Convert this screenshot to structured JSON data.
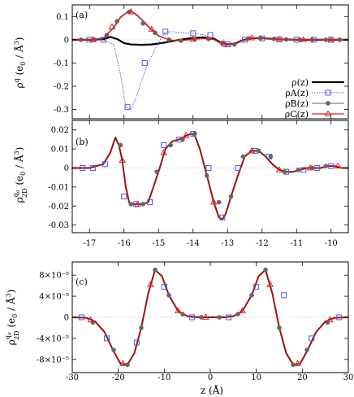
{
  "chart_data": [
    {
      "type": "line",
      "panel_label": "(a)",
      "ylabel": "ρ^q (e0 / Å^3)",
      "xlim": [
        -17.5,
        -9.5
      ],
      "ylim": [
        -0.34,
        0.15
      ],
      "xticks": [
        -17,
        -16,
        -15,
        -14,
        -13,
        -12,
        -11,
        -10
      ],
      "yticks": [
        0.1,
        0,
        -0.1,
        -0.2,
        -0.3
      ],
      "ytick_labels": [
        "0.1",
        "0",
        "-0.1",
        "-0.2",
        "-0.3"
      ],
      "show_xtick_labels": false,
      "zero_line": true,
      "legend": {
        "position": "lower-right",
        "entries": [
          "ρ(z)",
          "ρA(z)",
          "ρB(z)",
          "ρC(z)"
        ]
      },
      "series": [
        {
          "name": "ρ(z)",
          "style": "black-thick",
          "x": [
            -17.5,
            -17.0,
            -16.6,
            -16.4,
            -16.2,
            -16.0,
            -15.8,
            -15.5,
            -15.2,
            -14.9,
            -14.6,
            -14.3,
            -14.0,
            -13.7,
            -13.4,
            -13.2,
            -13.0,
            -12.8,
            -12.6,
            -12.3,
            -12.0,
            -11.5,
            -11.0,
            -10.5,
            -10.0,
            -9.5
          ],
          "y": [
            0,
            0,
            0.002,
            0.012,
            0.003,
            -0.015,
            -0.02,
            -0.022,
            -0.02,
            -0.014,
            -0.006,
            0.002,
            0.008,
            0.01,
            0.005,
            -0.012,
            -0.02,
            -0.018,
            -0.004,
            0.007,
            0.007,
            0.002,
            0,
            0,
            0,
            0
          ]
        },
        {
          "name": "ρA(z)",
          "style": "blue-dotted-square",
          "x": [
            -17.5,
            -17.0,
            -16.6,
            -16.3,
            -16.1,
            -15.95,
            -15.8,
            -15.65,
            -15.5,
            -15.3,
            -15.0,
            -14.8,
            -14.6,
            -14.3,
            -14.0,
            -13.7,
            -13.5,
            -13.3,
            -13.1,
            -12.9,
            -12.7,
            -12.4,
            -12.0,
            -11.5,
            -11.0,
            -10.5,
            -10.0,
            -9.5
          ],
          "y": [
            0,
            0,
            0,
            -0.02,
            -0.15,
            -0.29,
            -0.3,
            -0.25,
            -0.18,
            -0.1,
            -0.01,
            0.033,
            0.035,
            0.03,
            0.028,
            0.022,
            0.01,
            -0.01,
            -0.03,
            -0.03,
            -0.015,
            0.004,
            0.006,
            0.002,
            0,
            0,
            0,
            0
          ],
          "marker_x": [
            -17.0,
            -16.6,
            -15.9,
            -15.4,
            -14.8,
            -14.0,
            -13.5,
            -13.0,
            -12.5,
            -12.0,
            -11.5,
            -11.0,
            -10.5,
            -10.0
          ],
          "marker_y": [
            0,
            0,
            -0.29,
            -0.1,
            0.035,
            0.028,
            0.02,
            -0.02,
            0,
            0.006,
            0.002,
            0,
            0,
            0
          ]
        },
        {
          "name": "ρB(z)",
          "style": "gray-circle",
          "x": [
            -17.5,
            -17.0,
            -16.6,
            -16.3,
            -16.1,
            -15.9,
            -15.75,
            -15.6,
            -15.4,
            -15.2,
            -15.0,
            -14.8,
            -14.6,
            -14.4,
            -14.2,
            -14.0,
            -13.7,
            -13.4,
            -13.2,
            -13.0,
            -12.8,
            -12.6,
            -12.3,
            -12.0,
            -11.5,
            -11.0,
            -10.5,
            -10.0,
            -9.5
          ],
          "y": [
            0,
            0,
            0.008,
            0.055,
            0.1,
            0.12,
            0.118,
            0.1,
            0.07,
            0.04,
            0.015,
            0.005,
            -0.003,
            -0.004,
            -0.002,
            0.002,
            0.005,
            0.001,
            -0.014,
            -0.022,
            -0.02,
            -0.006,
            0.008,
            0.007,
            0.002,
            0,
            0,
            0,
            0
          ],
          "marker_x": [
            -17.25,
            -16.85,
            -16.5,
            -16.2,
            -15.85,
            -15.45,
            -15.1,
            -14.7,
            -14.35,
            -13.95,
            -13.55,
            -13.15,
            -12.8,
            -12.4,
            -12.05,
            -11.65,
            -11.3,
            -10.9,
            -10.55,
            -10.15,
            -9.75
          ],
          "marker_y": [
            0,
            0,
            0.02,
            0.08,
            0.12,
            0.07,
            0.03,
            0,
            -0.004,
            0.002,
            0.004,
            -0.014,
            -0.02,
            0.006,
            0.007,
            0.004,
            0.001,
            0,
            0,
            0,
            0
          ]
        },
        {
          "name": "ρC(z)",
          "style": "red-triangle",
          "x": [
            -17.5,
            -17.0,
            -16.6,
            -16.3,
            -16.1,
            -15.9,
            -15.75,
            -15.6,
            -15.4,
            -15.2,
            -15.0,
            -14.8,
            -14.6,
            -14.4,
            -14.2,
            -14.0,
            -13.7,
            -13.4,
            -13.2,
            -13.0,
            -12.8,
            -12.6,
            -12.3,
            -12.0,
            -11.5,
            -11.0,
            -10.5,
            -10.0,
            -9.5
          ],
          "y": [
            0,
            0,
            0.007,
            0.05,
            0.095,
            0.118,
            0.12,
            0.105,
            0.075,
            0.045,
            0.018,
            0.006,
            -0.002,
            -0.004,
            -0.002,
            0.002,
            0.005,
            0.001,
            -0.013,
            -0.021,
            -0.019,
            -0.005,
            0.008,
            0.007,
            0.002,
            0,
            0,
            0,
            0
          ],
          "marker_x": [
            -16.9,
            -16.35,
            -15.8,
            -15.2,
            -14.0,
            -13.1,
            -12.3,
            -11.5,
            -10.8,
            -10.0
          ],
          "marker_y": [
            0,
            0.055,
            0.12,
            0.045,
            0.002,
            -0.018,
            0.008,
            0.002,
            0,
            0
          ]
        }
      ]
    },
    {
      "type": "line",
      "panel_label": "(b)",
      "ylabel": "ρ_2D^q_σ (e0 / Å^3)",
      "xlim": [
        -17.5,
        -9.5
      ],
      "ylim": [
        -0.034,
        0.025
      ],
      "xticks": [
        -17,
        -16,
        -15,
        -14,
        -13,
        -12,
        -11,
        -10
      ],
      "xtick_labels": [
        "-17",
        "-16",
        "-15",
        "-14",
        "-13",
        "-12",
        "-11",
        "-10"
      ],
      "yticks": [
        0.02,
        0.01,
        0,
        -0.01,
        -0.02,
        -0.03
      ],
      "ytick_labels": [
        "0.02",
        "0.01",
        "0",
        "-0.01",
        "-0.02",
        "-0.03"
      ],
      "show_xtick_labels": true,
      "zero_line": true,
      "series": [
        {
          "name": "ρC(z)",
          "style": "red-line",
          "x": [
            -17.5,
            -17.0,
            -16.6,
            -16.4,
            -16.25,
            -16.15,
            -16.05,
            -15.95,
            -15.85,
            -15.75,
            -15.6,
            -15.45,
            -15.3,
            -15.15,
            -15.0,
            -14.8,
            -14.6,
            -14.4,
            -14.2,
            -14.05,
            -13.95,
            -13.8,
            -13.6,
            -13.4,
            -13.25,
            -13.15,
            -13.05,
            -12.9,
            -12.7,
            -12.5,
            -12.3,
            -12.1,
            -11.9,
            -11.7,
            -11.5,
            -11.3,
            -11.1,
            -10.9,
            -10.7,
            -10.5,
            -10.3,
            -10.1,
            -9.9,
            -9.7,
            -9.5
          ],
          "y": [
            0,
            0,
            0.002,
            0.008,
            0.016,
            0.012,
            0.004,
            -0.01,
            -0.018,
            -0.019,
            -0.019,
            -0.019,
            -0.018,
            -0.01,
            -0.002,
            0.01,
            0.014,
            0.015,
            0.017,
            0.018,
            0.017,
            0.01,
            -0.004,
            -0.018,
            -0.026,
            -0.027,
            -0.024,
            -0.015,
            -0.004,
            0.006,
            0.009,
            0.009,
            0.006,
            0.002,
            -0.001,
            -0.002,
            -0.002,
            -0.001,
            0,
            0,
            0,
            0.001,
            0.001,
            0,
            0
          ]
        },
        {
          "name": "ρA(z) markers",
          "style": "blue-square",
          "marker_x": [
            -17.2,
            -16.9,
            -16.55,
            -16.0,
            -15.65,
            -15.25,
            -14.85,
            -14.4,
            -14.0,
            -13.55,
            -13.15,
            -12.7,
            -12.2,
            -11.8,
            -11.3,
            -10.8,
            -10.4,
            -10.0
          ],
          "marker_y": [
            0,
            0,
            0.002,
            -0.015,
            -0.019,
            -0.018,
            0.012,
            0.015,
            0.018,
            0,
            -0.026,
            0,
            0.009,
            0.006,
            -0.002,
            -0.001,
            0,
            0.001
          ]
        },
        {
          "name": "ρB(z) markers",
          "style": "gray-circle",
          "marker_x": [
            -16.1,
            -15.8,
            -15.45,
            -15.05,
            -14.65,
            -14.3,
            -13.95,
            -13.6,
            -13.25,
            -12.9,
            -12.55,
            -12.1,
            -11.75,
            -11.35,
            -10.95,
            -10.55,
            -10.15
          ],
          "marker_y": [
            0.012,
            -0.019,
            -0.019,
            -0.002,
            0.012,
            0.015,
            0.018,
            -0.004,
            -0.018,
            -0.015,
            0.006,
            0.009,
            0.006,
            -0.002,
            -0.001,
            0,
            0.001
          ]
        },
        {
          "name": "ρC(z) markers",
          "style": "red-triangle",
          "marker_x": [
            -16.05,
            -15.6,
            -14.85,
            -14.2,
            -13.4,
            -12.3,
            -11.5,
            -10.6,
            -9.8
          ],
          "marker_y": [
            0.004,
            -0.019,
            0.008,
            0.017,
            -0.018,
            0.009,
            -0.001,
            0,
            0.001
          ]
        }
      ]
    },
    {
      "type": "line",
      "panel_label": "(c)",
      "ylabel": "ρ_2D^q_σ (e0 / Å^3)",
      "xlabel": "z (Å)",
      "xlim": [
        -30,
        30
      ],
      "ylim": [
        -0.000105,
        0.000105
      ],
      "xticks": [
        -30,
        -20,
        -10,
        0,
        10,
        20,
        30
      ],
      "xtick_labels": [
        "-30",
        "-20",
        "-10",
        "0",
        "10",
        "20",
        "30"
      ],
      "yticks": [
        8e-05,
        4e-05,
        0,
        -4e-05,
        -8e-05
      ],
      "ytick_labels": [
        "8×10⁻⁵",
        "4×10⁻⁵",
        "0",
        "-4×10⁻⁵",
        "-8×10⁻⁵"
      ],
      "show_xtick_labels": true,
      "zero_line": true,
      "series": [
        {
          "name": "ρC(z)",
          "style": "red-line",
          "x": [
            -30,
            -27,
            -25,
            -23,
            -21,
            -19.5,
            -18,
            -16.5,
            -15,
            -13.5,
            -12,
            -10.5,
            -9,
            -7,
            -5,
            -3,
            -1,
            0,
            1,
            3,
            5,
            7,
            9,
            10.5,
            12,
            13.5,
            15,
            16.5,
            18,
            19.5,
            21,
            23,
            25,
            27,
            30
          ],
          "y": [
            0,
            -1e-06,
            -8e-06,
            -2.8e-05,
            -6.5e-05,
            -8.8e-05,
            -9e-05,
            -6.8e-05,
            -2e-05,
            4.5e-05,
            9e-05,
            7.8e-05,
            4.2e-05,
            1.2e-05,
            2e-06,
            0,
            0,
            0,
            0,
            0,
            2e-06,
            1.2e-05,
            4.2e-05,
            7.8e-05,
            9e-05,
            4.5e-05,
            -2e-05,
            -6.8e-05,
            -9e-05,
            -8.8e-05,
            -6.5e-05,
            -2.8e-05,
            -8e-06,
            -1e-06,
            0
          ]
        },
        {
          "name": "ρA(z) markers",
          "style": "blue-square",
          "marker_x": [
            -28,
            -22.5,
            -16,
            -10,
            -4,
            4,
            10,
            16,
            22,
            28
          ],
          "marker_y": [
            0,
            -4e-05,
            -4.8e-05,
            5.8e-05,
            0,
            0,
            5.8e-05,
            4.2e-05,
            -4e-05,
            0
          ]
        },
        {
          "name": "ρB(z) markers",
          "style": "gray-circle",
          "marker_x": [
            -25.5,
            -21,
            -18,
            -15,
            -12,
            -9,
            -6,
            -2,
            2,
            6,
            9,
            12,
            15,
            18,
            21,
            25.5
          ],
          "marker_y": [
            -1e-05,
            -6.2e-05,
            -9e-05,
            -2e-05,
            9e-05,
            4.2e-05,
            6e-06,
            0,
            0,
            6e-06,
            4.2e-05,
            9e-05,
            -2e-05,
            -9e-05,
            -6.2e-05,
            -1e-05
          ]
        },
        {
          "name": "ρC(z) markers",
          "style": "red-triangle",
          "marker_x": [
            -26,
            -19,
            -13,
            -7,
            -1,
            7,
            13,
            19,
            26
          ],
          "marker_y": [
            -5e-06,
            -8.8e-05,
            6.2e-05,
            1.2e-05,
            0,
            1.2e-05,
            6.2e-05,
            -8.8e-05,
            -5e-06
          ]
        }
      ]
    }
  ]
}
